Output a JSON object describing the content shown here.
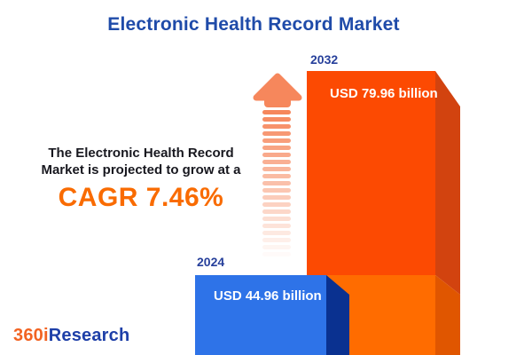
{
  "title": "Electronic Health Record Market",
  "annotation": {
    "line1": "The Electronic Health Record",
    "line2": "Market is projected to grow at a",
    "cagr": "CAGR 7.46%"
  },
  "chart_data": {
    "type": "bar",
    "title": "Electronic Health Record Market",
    "categories": [
      "2024",
      "2032"
    ],
    "values": [
      44.96,
      79.96
    ],
    "unit": "USD billion",
    "value_labels": [
      "USD 44.96 billion",
      "USD 79.96 billion"
    ],
    "cagr_percent": 7.46,
    "orientation": "vertical",
    "axes_visible": false,
    "legend": "none",
    "style": "3d-blocks with growth arrow",
    "bar_colors": [
      "#2e73e8",
      "#fc4a02"
    ]
  },
  "logo": {
    "prefix": "360i",
    "suffix": "Research"
  },
  "arrow": {
    "stripe_count": 21
  },
  "colors": {
    "title-blue": "#1f4ba9",
    "label-navy": "#27409b",
    "text-dark": "#18181f",
    "cagr-orange": "#f96b00",
    "bar2032-front": "#fc4a02",
    "bar2032-front-lower": "#ff6c00",
    "bar2032-side": "#d2430f",
    "bar2032-side-lower": "#e05600",
    "bar2024-front": "#2e73e8",
    "bar2024-side": "#0a3190",
    "arrow-orange": "#f6875c",
    "logo-orange": "#f26322",
    "logo-blue": "#1e3fa8",
    "value-text": "#ffffff"
  }
}
